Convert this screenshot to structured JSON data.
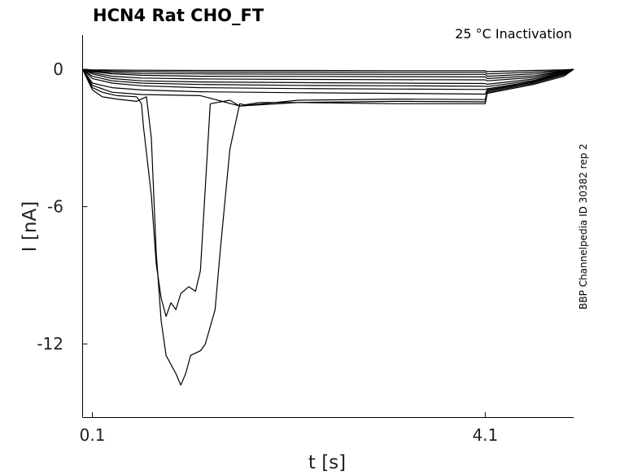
{
  "chart_data": {
    "type": "line",
    "title": "HCN4  Rat  CHO_FT",
    "annotation": "25 °C  Inactivation",
    "side_label": "BBP Channelpedia ID 30382 rep 2",
    "xlabel": "t [s]",
    "ylabel": "I [nA]",
    "xlim": [
      0.0,
      5.0
    ],
    "ylim": [
      -15.2,
      1.5
    ],
    "xticks": [
      0.1,
      4.1
    ],
    "xtick_labels": [
      "0.1",
      "4.1"
    ],
    "yticks": [
      0,
      -6,
      -12
    ],
    "ytick_labels": [
      "0",
      "-6",
      "-12"
    ],
    "grid": false,
    "series": [
      {
        "x": [
          0.0,
          0.1,
          0.3,
          0.6,
          1.2,
          2.2,
          3.2,
          4.1,
          4.12,
          4.6,
          4.9,
          5.0
        ],
        "y": [
          0.0,
          -0.02,
          -0.03,
          -0.04,
          -0.05,
          -0.05,
          -0.06,
          -0.06,
          -0.1,
          -0.05,
          -0.02,
          0.0
        ]
      },
      {
        "x": [
          0.0,
          0.1,
          0.3,
          0.6,
          1.2,
          2.2,
          3.2,
          4.1,
          4.12,
          4.6,
          4.9,
          5.0
        ],
        "y": [
          0.0,
          -0.05,
          -0.08,
          -0.1,
          -0.12,
          -0.12,
          -0.13,
          -0.13,
          -0.2,
          -0.12,
          -0.05,
          0.0
        ]
      },
      {
        "x": [
          0.0,
          0.1,
          0.3,
          0.6,
          1.2,
          2.2,
          3.2,
          4.1,
          4.12,
          4.6,
          4.9,
          5.0
        ],
        "y": [
          0.0,
          -0.08,
          -0.14,
          -0.18,
          -0.2,
          -0.21,
          -0.22,
          -0.22,
          -0.3,
          -0.2,
          -0.08,
          0.0
        ]
      },
      {
        "x": [
          0.0,
          0.1,
          0.3,
          0.6,
          1.2,
          2.2,
          3.2,
          4.1,
          4.12,
          4.6,
          4.9,
          5.0
        ],
        "y": [
          0.0,
          -0.1,
          -0.2,
          -0.26,
          -0.3,
          -0.31,
          -0.32,
          -0.33,
          -0.4,
          -0.28,
          -0.1,
          0.0
        ]
      },
      {
        "x": [
          0.0,
          0.1,
          0.3,
          0.6,
          1.2,
          2.2,
          3.2,
          4.1,
          4.12,
          4.6,
          4.9,
          5.0
        ],
        "y": [
          0.0,
          -0.15,
          -0.3,
          -0.38,
          -0.42,
          -0.44,
          -0.45,
          -0.46,
          -0.5,
          -0.35,
          -0.12,
          0.0
        ]
      },
      {
        "x": [
          0.0,
          0.1,
          0.3,
          0.6,
          1.2,
          2.2,
          3.2,
          4.1,
          4.12,
          4.6,
          4.9,
          5.0
        ],
        "y": [
          0.0,
          -0.2,
          -0.4,
          -0.5,
          -0.55,
          -0.58,
          -0.6,
          -0.62,
          -0.65,
          -0.42,
          -0.15,
          0.0
        ]
      },
      {
        "x": [
          0.0,
          0.1,
          0.3,
          0.6,
          1.2,
          2.2,
          3.2,
          4.1,
          4.12,
          4.6,
          4.9,
          5.0
        ],
        "y": [
          0.0,
          -0.3,
          -0.5,
          -0.6,
          -0.66,
          -0.7,
          -0.72,
          -0.74,
          -0.75,
          -0.48,
          -0.16,
          0.0
        ]
      },
      {
        "x": [
          0.0,
          0.1,
          0.3,
          0.6,
          1.2,
          2.2,
          3.2,
          4.1,
          4.12,
          4.6,
          4.9,
          5.0
        ],
        "y": [
          0.0,
          -0.4,
          -0.6,
          -0.72,
          -0.8,
          -0.84,
          -0.86,
          -0.88,
          -0.85,
          -0.52,
          -0.18,
          0.0
        ]
      },
      {
        "x": [
          0.0,
          0.1,
          0.3,
          0.6,
          1.2,
          2.2,
          3.2,
          4.1,
          4.12,
          4.6,
          4.9,
          5.0
        ],
        "y": [
          0.0,
          -0.6,
          -0.8,
          -0.9,
          -0.98,
          -1.02,
          -1.05,
          -1.08,
          -0.9,
          -0.55,
          -0.2,
          0.0
        ]
      },
      {
        "x": [
          0.0,
          0.1,
          0.3,
          0.6,
          1.2,
          1.6,
          2.2,
          3.2,
          4.1,
          4.12,
          4.6,
          4.9,
          5.0
        ],
        "y": [
          0.0,
          -0.7,
          -1.0,
          -1.1,
          -1.15,
          -1.6,
          -1.35,
          -1.3,
          -1.32,
          -0.95,
          -0.55,
          -0.2,
          0.0
        ]
      },
      {
        "x": [
          0.0,
          0.1,
          0.2,
          0.35,
          0.55,
          0.6,
          0.62,
          0.7,
          0.75,
          0.8,
          0.85,
          0.9,
          0.95,
          1.0,
          1.08,
          1.15,
          1.2,
          1.3,
          1.5,
          1.6,
          2.2,
          3.2,
          4.1,
          4.12,
          4.6,
          4.9,
          5.0
        ],
        "y": [
          0.0,
          -0.8,
          -1.0,
          -1.15,
          -1.2,
          -1.5,
          -2.5,
          -5.5,
          -8.5,
          -10.0,
          -10.8,
          -10.2,
          -10.5,
          -9.8,
          -9.5,
          -9.7,
          -8.8,
          -1.5,
          -1.35,
          -1.6,
          -1.45,
          -1.4,
          -1.42,
          -1.0,
          -0.6,
          -0.25,
          0.0
        ]
      },
      {
        "x": [
          0.0,
          0.1,
          0.2,
          0.35,
          0.55,
          0.6,
          0.65,
          0.7,
          0.75,
          0.8,
          0.85,
          0.95,
          1.0,
          1.05,
          1.1,
          1.2,
          1.25,
          1.35,
          1.4,
          1.5,
          1.6,
          1.65,
          1.8,
          2.2,
          3.2,
          4.1,
          4.12,
          4.6,
          4.9,
          5.0
        ],
        "y": [
          0.0,
          -0.9,
          -1.2,
          -1.3,
          -1.4,
          -1.3,
          -1.2,
          -3.0,
          -8.0,
          -11.0,
          -12.5,
          -13.3,
          -13.8,
          -13.3,
          -12.5,
          -12.3,
          -12.0,
          -10.5,
          -8.0,
          -3.5,
          -1.5,
          -1.55,
          -1.45,
          -1.45,
          -1.5,
          -1.5,
          -1.05,
          -0.65,
          -0.3,
          0.0
        ]
      }
    ]
  }
}
